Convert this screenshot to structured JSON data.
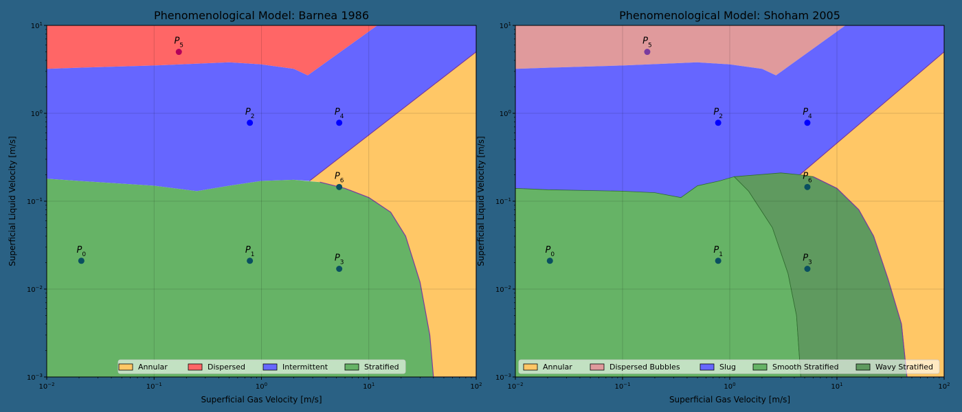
{
  "colors": {
    "annular": "#ffc766",
    "dispersed": "#ff6666",
    "dispersed_bubbles": "#e09a9c",
    "intermittent": "#6666ff",
    "stratified": "#66b366",
    "wavy_stratified": "#5f9a5f",
    "point": "#0000ff",
    "point_in_stratified": "#0a4f60",
    "point_in_dispersed": "#b3005a",
    "point_in_bubbles": "#7a3a9e",
    "background": "#2a6184"
  },
  "chart_data": [
    {
      "type": "area",
      "title": "Phenomenological Model: Barnea 1986",
      "xlabel": "Superficial Gas Velocity [m/s]",
      "ylabel": "Superficial Liquid Velocity [m/s]",
      "xscale": "log",
      "yscale": "log",
      "xlim": [
        0.01,
        100
      ],
      "ylim": [
        0.001,
        10
      ],
      "xticks": [
        {
          "base": "10",
          "exp": "−2"
        },
        {
          "base": "10",
          "exp": "−1"
        },
        {
          "base": "10",
          "exp": "0"
        },
        {
          "base": "10",
          "exp": "1"
        },
        {
          "base": "10",
          "exp": "2"
        }
      ],
      "yticks": [
        {
          "base": "10",
          "exp": "−3"
        },
        {
          "base": "10",
          "exp": "−2"
        },
        {
          "base": "10",
          "exp": "−1"
        },
        {
          "base": "10",
          "exp": "0"
        },
        {
          "base": "10",
          "exp": "1"
        }
      ],
      "grid": true,
      "legend_position": "bottom-right",
      "legend": [
        {
          "label": "Annular",
          "color": "#ffc766"
        },
        {
          "label": "Dispersed",
          "color": "#ff6666"
        },
        {
          "label": "Intermittent",
          "color": "#6666ff"
        },
        {
          "label": "Stratified",
          "color": "#66b366"
        }
      ],
      "regions": [
        {
          "name": "Annular",
          "color": "#ffc766",
          "boundary": [
            [
              2.8,
              0.17
            ],
            [
              100,
              5
            ],
            [
              100,
              0.001
            ],
            [
              40,
              0.001
            ],
            [
              37,
              0.003
            ],
            [
              30,
              0.012
            ],
            [
              22,
              0.04
            ],
            [
              16,
              0.075
            ],
            [
              10,
              0.11
            ],
            [
              6,
              0.14
            ],
            [
              3.5,
              0.165
            ]
          ]
        },
        {
          "name": "Dispersed",
          "color": "#ff6666",
          "boundary": [
            [
              0.01,
              10
            ],
            [
              12,
              10
            ],
            [
              2.7,
              2.7
            ],
            [
              2,
              3.2
            ],
            [
              1,
              3.6
            ],
            [
              0.5,
              3.8
            ],
            [
              0.1,
              3.5
            ],
            [
              0.02,
              3.3
            ],
            [
              0.01,
              3.2
            ]
          ]
        },
        {
          "name": "Intermittent",
          "color": "#6666ff",
          "boundary": [
            [
              0.01,
              3.2
            ],
            [
              0.02,
              3.3
            ],
            [
              0.1,
              3.5
            ],
            [
              0.5,
              3.8
            ],
            [
              1,
              3.6
            ],
            [
              2,
              3.2
            ],
            [
              2.7,
              2.7
            ],
            [
              12,
              10
            ],
            [
              100,
              10
            ],
            [
              100,
              5
            ],
            [
              2.8,
              0.17
            ],
            [
              2,
              0.175
            ],
            [
              1,
              0.17
            ],
            [
              0.5,
              0.15
            ],
            [
              0.25,
              0.13
            ],
            [
              0.1,
              0.15
            ],
            [
              0.02,
              0.17
            ],
            [
              0.01,
              0.18
            ]
          ]
        },
        {
          "name": "Stratified",
          "color": "#66b366",
          "boundary": [
            [
              0.01,
              0.18
            ],
            [
              0.02,
              0.17
            ],
            [
              0.1,
              0.15
            ],
            [
              0.25,
              0.13
            ],
            [
              0.5,
              0.15
            ],
            [
              1,
              0.17
            ],
            [
              2,
              0.175
            ],
            [
              3.5,
              0.165
            ],
            [
              6,
              0.14
            ],
            [
              10,
              0.11
            ],
            [
              16,
              0.075
            ],
            [
              22,
              0.04
            ],
            [
              30,
              0.012
            ],
            [
              37,
              0.003
            ],
            [
              40,
              0.001
            ],
            [
              0.01,
              0.001
            ]
          ]
        }
      ],
      "points": [
        {
          "base": "P",
          "sub": "0",
          "x": 0.021,
          "y": 0.021,
          "color": "#0a4f60"
        },
        {
          "base": "P",
          "sub": "1",
          "x": 0.78,
          "y": 0.021,
          "color": "#0a4f60"
        },
        {
          "base": "P",
          "sub": "2",
          "x": 0.78,
          "y": 0.78,
          "color": "#0000ff"
        },
        {
          "base": "P",
          "sub": "3",
          "x": 5.3,
          "y": 0.017,
          "color": "#0a4f60"
        },
        {
          "base": "P",
          "sub": "4",
          "x": 5.3,
          "y": 0.78,
          "color": "#0000ff"
        },
        {
          "base": "P",
          "sub": "5",
          "x": 0.17,
          "y": 5,
          "color": "#b3005a"
        },
        {
          "base": "P",
          "sub": "6",
          "x": 5.3,
          "y": 0.145,
          "color": "#0a4f60"
        }
      ]
    },
    {
      "type": "area",
      "title": "Phenomenological Model: Shoham 2005",
      "xlabel": "Superficial Gas Velocity [m/s]",
      "ylabel": "Superficial Liquid Velocity [m/s]",
      "xscale": "log",
      "yscale": "log",
      "xlim": [
        0.01,
        100
      ],
      "ylim": [
        0.001,
        10
      ],
      "xticks": [
        {
          "base": "10",
          "exp": "−2"
        },
        {
          "base": "10",
          "exp": "−1"
        },
        {
          "base": "10",
          "exp": "0"
        },
        {
          "base": "10",
          "exp": "1"
        },
        {
          "base": "10",
          "exp": "2"
        }
      ],
      "yticks": [
        {
          "base": "10",
          "exp": "−3"
        },
        {
          "base": "10",
          "exp": "−2"
        },
        {
          "base": "10",
          "exp": "−1"
        },
        {
          "base": "10",
          "exp": "0"
        },
        {
          "base": "10",
          "exp": "1"
        }
      ],
      "grid": true,
      "legend_position": "bottom-right",
      "legend": [
        {
          "label": "Annular",
          "color": "#ffc766"
        },
        {
          "label": "Dispersed Bubbles",
          "color": "#e09a9c"
        },
        {
          "label": "Slug",
          "color": "#6666ff"
        },
        {
          "label": "Smooth Stratified",
          "color": "#66b366"
        },
        {
          "label": "Wavy Stratified",
          "color": "#5f9a5f"
        }
      ],
      "regions": [
        {
          "name": "Annular",
          "color": "#ffc766",
          "boundary": [
            [
              4.5,
              0.2
            ],
            [
              100,
              5
            ],
            [
              100,
              0.001
            ],
            [
              45,
              0.001
            ],
            [
              40,
              0.004
            ],
            [
              30,
              0.013
            ],
            [
              22,
              0.04
            ],
            [
              16,
              0.08
            ],
            [
              10,
              0.14
            ],
            [
              6,
              0.19
            ]
          ]
        },
        {
          "name": "Dispersed Bubbles",
          "color": "#e09a9c",
          "boundary": [
            [
              0.01,
              10
            ],
            [
              12,
              10
            ],
            [
              2.7,
              2.7
            ],
            [
              2,
              3.2
            ],
            [
              1,
              3.6
            ],
            [
              0.5,
              3.8
            ],
            [
              0.1,
              3.5
            ],
            [
              0.02,
              3.3
            ],
            [
              0.01,
              3.2
            ]
          ]
        },
        {
          "name": "Slug",
          "color": "#6666ff",
          "boundary": [
            [
              0.01,
              3.2
            ],
            [
              0.02,
              3.3
            ],
            [
              0.1,
              3.5
            ],
            [
              0.5,
              3.8
            ],
            [
              1,
              3.6
            ],
            [
              2,
              3.2
            ],
            [
              2.7,
              2.7
            ],
            [
              12,
              10
            ],
            [
              100,
              10
            ],
            [
              100,
              5
            ],
            [
              4.5,
              0.2
            ],
            [
              3,
              0.21
            ],
            [
              1.1,
              0.19
            ],
            [
              0.8,
              0.17
            ],
            [
              0.5,
              0.15
            ],
            [
              0.35,
              0.11
            ],
            [
              0.2,
              0.125
            ],
            [
              0.1,
              0.13
            ],
            [
              0.02,
              0.135
            ],
            [
              0.01,
              0.14
            ]
          ]
        },
        {
          "name": "Smooth Stratified",
          "color": "#66b366",
          "boundary": [
            [
              0.01,
              0.14
            ],
            [
              0.02,
              0.135
            ],
            [
              0.1,
              0.13
            ],
            [
              0.2,
              0.125
            ],
            [
              0.35,
              0.11
            ],
            [
              0.5,
              0.15
            ],
            [
              0.8,
              0.17
            ],
            [
              1.1,
              0.19
            ],
            [
              1.5,
              0.13
            ],
            [
              2.5,
              0.05
            ],
            [
              3.5,
              0.015
            ],
            [
              4.2,
              0.005
            ],
            [
              4.6,
              0.001
            ],
            [
              0.01,
              0.001
            ]
          ]
        },
        {
          "name": "Wavy Stratified",
          "color": "#5f9a5f",
          "boundary": [
            [
              1.1,
              0.19
            ],
            [
              3,
              0.21
            ],
            [
              4.5,
              0.2
            ],
            [
              6,
              0.19
            ],
            [
              10,
              0.14
            ],
            [
              16,
              0.08
            ],
            [
              22,
              0.04
            ],
            [
              30,
              0.013
            ],
            [
              40,
              0.004
            ],
            [
              45,
              0.001
            ],
            [
              4.6,
              0.001
            ],
            [
              4.2,
              0.005
            ],
            [
              3.5,
              0.015
            ],
            [
              2.5,
              0.05
            ],
            [
              1.5,
              0.13
            ]
          ]
        }
      ],
      "points": [
        {
          "base": "P",
          "sub": "0",
          "x": 0.021,
          "y": 0.021,
          "color": "#0a4f60"
        },
        {
          "base": "P",
          "sub": "1",
          "x": 0.78,
          "y": 0.021,
          "color": "#0a4f60"
        },
        {
          "base": "P",
          "sub": "2",
          "x": 0.78,
          "y": 0.78,
          "color": "#0000ff"
        },
        {
          "base": "P",
          "sub": "3",
          "x": 5.3,
          "y": 0.017,
          "color": "#0a4f60"
        },
        {
          "base": "P",
          "sub": "4",
          "x": 5.3,
          "y": 0.78,
          "color": "#0000ff"
        },
        {
          "base": "P",
          "sub": "5",
          "x": 0.17,
          "y": 5,
          "color": "#7a3a9e"
        },
        {
          "base": "P",
          "sub": "6",
          "x": 5.3,
          "y": 0.145,
          "color": "#0a4f60"
        }
      ]
    }
  ]
}
